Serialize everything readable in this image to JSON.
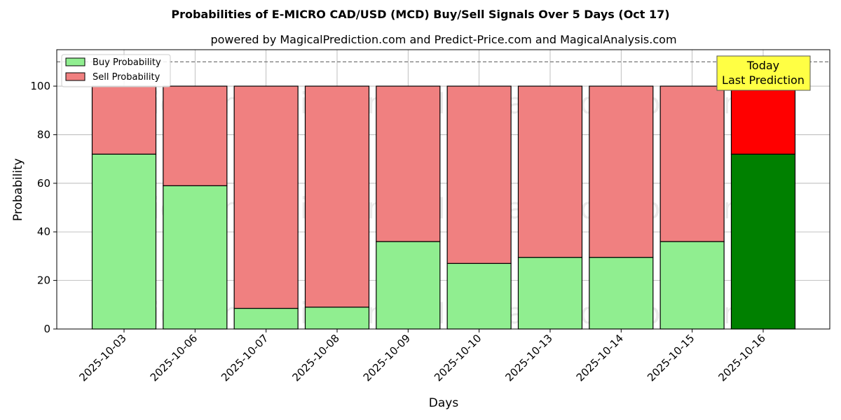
{
  "chart_data": {
    "type": "bar",
    "stacked": true,
    "title": "Probabilities of E-MICRO CAD/USD (MCD) Buy/Sell Signals Over 5 Days (Oct 17)",
    "subtitle": "powered by MagicalPrediction.com and Predict-Price.com and MagicalAnalysis.com",
    "xlabel": "Days",
    "ylabel": "Probability",
    "ylim": [
      0,
      115
    ],
    "yticks": [
      0,
      20,
      40,
      60,
      80,
      100
    ],
    "grid": true,
    "legend_position": "top-left",
    "reference_line": 110,
    "categories": [
      "2025-10-03",
      "2025-10-06",
      "2025-10-07",
      "2025-10-08",
      "2025-10-09",
      "2025-10-10",
      "2025-10-13",
      "2025-10-14",
      "2025-10-15",
      "2025-10-16"
    ],
    "series": [
      {
        "name": "Buy Probability",
        "values": [
          72,
          59,
          8.5,
          9,
          36,
          27,
          29.5,
          29.5,
          36,
          72
        ]
      },
      {
        "name": "Sell Probability",
        "values": [
          28,
          41,
          91.5,
          91,
          64,
          73,
          70.5,
          70.5,
          64,
          28
        ]
      }
    ],
    "colors": {
      "buy": "#90ee90",
      "sell": "#f08080",
      "buy_highlight": "#008000",
      "sell_highlight": "#ff0000",
      "annotation_bg": "#ffff44"
    },
    "annotation": {
      "lines": [
        "Today",
        "Last Prediction"
      ]
    },
    "watermarks": [
      "MagicalAnalysis.com",
      "MagicalPrediction.com"
    ]
  }
}
